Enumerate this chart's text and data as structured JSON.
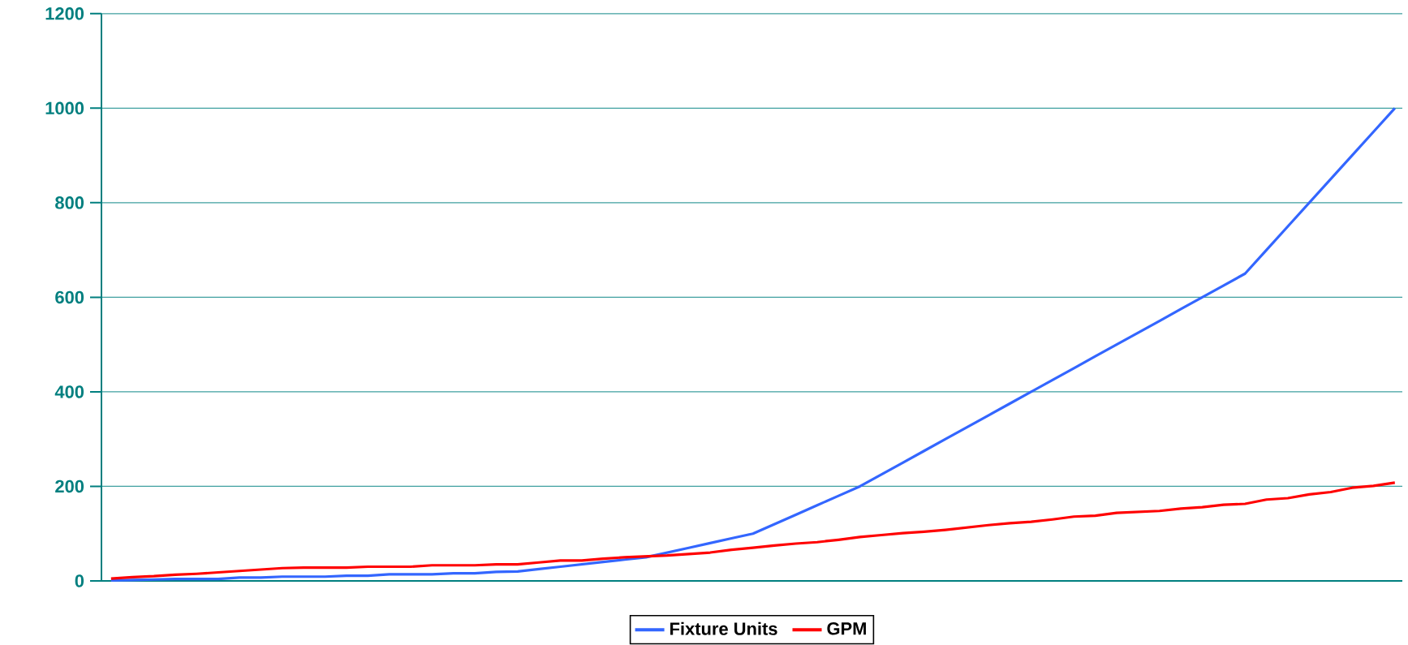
{
  "chart_data": {
    "type": "line",
    "categories": [
      null,
      null,
      null,
      null,
      null,
      null,
      null,
      null,
      null,
      null,
      null,
      null,
      null,
      null,
      null,
      null,
      null,
      null,
      null,
      null,
      null,
      null,
      null,
      null,
      null,
      null,
      null,
      null,
      null,
      null,
      null,
      null,
      null,
      null,
      null,
      null,
      null,
      null,
      null,
      null,
      null,
      null,
      null,
      null,
      null,
      null,
      null,
      null,
      null,
      null,
      null,
      null,
      null,
      null,
      null,
      null,
      null,
      null,
      null,
      null,
      null
    ],
    "series": [
      {
        "name": "Fixture Units",
        "color": "#3366ff",
        "values": [
          1,
          2,
          3,
          4,
          4,
          4,
          7,
          7,
          9,
          9,
          9,
          11,
          11,
          14,
          14,
          14,
          16,
          16,
          19,
          20,
          25,
          30,
          35,
          40,
          45,
          50,
          60,
          70,
          80,
          90,
          100,
          120,
          140,
          160,
          180,
          200,
          225,
          250,
          275,
          300,
          325,
          350,
          375,
          400,
          425,
          450,
          475,
          500,
          525,
          550,
          575,
          600,
          625,
          650,
          700,
          750,
          800,
          850,
          900,
          950,
          1000
        ]
      },
      {
        "name": "GPM",
        "color": "#ff0000",
        "values": [
          5,
          8,
          10,
          13,
          15,
          18,
          21,
          24,
          27,
          28,
          28,
          28,
          30,
          30,
          30,
          33,
          33,
          33,
          35,
          35,
          39,
          43,
          43,
          47,
          50,
          52,
          54,
          57,
          60,
          66,
          70,
          75,
          79,
          82,
          87,
          93,
          97,
          101,
          104,
          108,
          113,
          118,
          122,
          125,
          130,
          136,
          138,
          144,
          146,
          148,
          153,
          156,
          161,
          163,
          172,
          175,
          183,
          188,
          197,
          201,
          208
        ]
      }
    ],
    "ylim": [
      0,
      1200
    ],
    "yticks": [
      0,
      200,
      400,
      600,
      800,
      1000,
      1200
    ],
    "grid": "y",
    "legend": "bottom",
    "tick_labels": "y",
    "line_style": "solid"
  }
}
